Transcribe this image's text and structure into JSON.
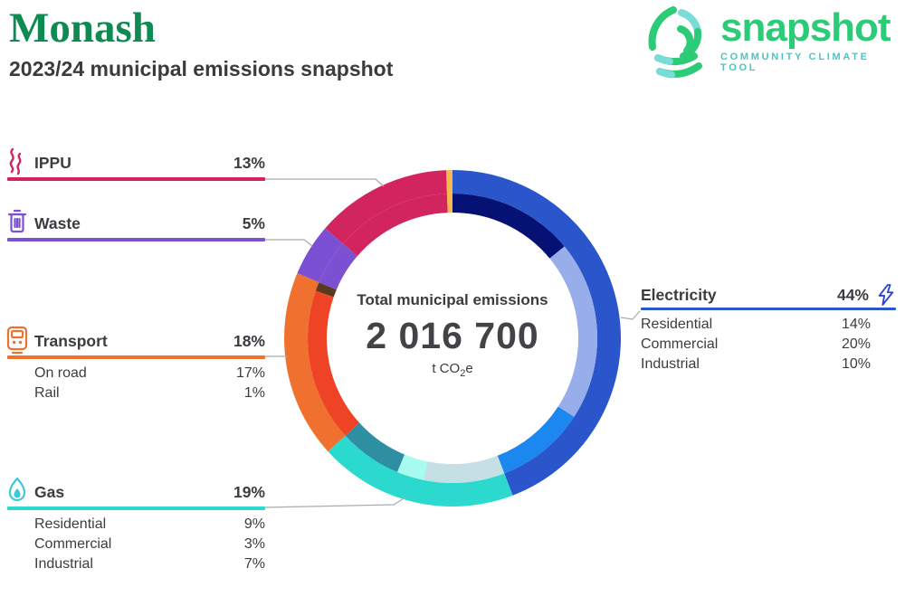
{
  "header": {
    "title": "Monash",
    "subtitle": "2023/24 municipal emissions snapshot",
    "title_color": "#0E8A52"
  },
  "logo": {
    "wordmark": "snapshot",
    "tagline": "COMMUNITY CLIMATE TOOL",
    "green": "#2BCB77",
    "teal": "#45C8C3"
  },
  "center": {
    "label": "Total municipal emissions",
    "value": "2 016 700",
    "unit_prefix": "t CO",
    "unit_sub": "2",
    "unit_suffix": "e"
  },
  "chart_data": {
    "type": "pie",
    "subtype": "two-ring donut",
    "title": "Total municipal emissions",
    "total_label": "2 016 700",
    "unit": "t CO2e",
    "start_angle_deg": 0,
    "direction": "clockwise",
    "rings": [
      "sector (outer)",
      "subsector (inner)"
    ],
    "series": [
      {
        "name": "Electricity",
        "pct": "44%",
        "value": 44,
        "color": "#2B55CB",
        "icon": "lightning-bolt",
        "icon_color": "#2B45D0",
        "subs": [
          {
            "name": "Residential",
            "pct": "14%",
            "value": 14,
            "color": "#051173"
          },
          {
            "name": "Commercial",
            "pct": "20%",
            "value": 20,
            "color": "#97AEEA"
          },
          {
            "name": "Industrial",
            "pct": "10%",
            "value": 10,
            "color": "#1D87F0"
          }
        ]
      },
      {
        "name": "Gas",
        "pct": "19%",
        "value": 19,
        "color": "#2BD9CE",
        "icon": "flame",
        "icon_color": "#3EC9DB",
        "subs": [
          {
            "name": "Residential",
            "pct": "9%",
            "value": 9,
            "color": "#C4E0E4"
          },
          {
            "name": "Commercial",
            "pct": "3%",
            "value": 3,
            "color": "#A8FBEF"
          },
          {
            "name": "Industrial",
            "pct": "7%",
            "value": 7,
            "color": "#2E8FA3"
          }
        ]
      },
      {
        "name": "Transport",
        "pct": "18%",
        "value": 18,
        "color": "#F0712F",
        "icon": "train",
        "icon_color": "#F0712F",
        "subs": [
          {
            "name": "On road",
            "pct": "17%",
            "value": 17,
            "color": "#EE4325"
          },
          {
            "name": "Rail",
            "pct": "1%",
            "value": 1,
            "color": "#5A3A1E"
          }
        ]
      },
      {
        "name": "Waste",
        "pct": "5%",
        "value": 5,
        "color": "#7B50D2",
        "icon": "trash-can",
        "icon_color": "#7B50D2",
        "subs": []
      },
      {
        "name": "IPPU",
        "pct": "13%",
        "value": 13,
        "color": "#D22560",
        "icon": "smoke",
        "icon_color": "#D22560",
        "subs": []
      },
      {
        "name": "unlabelled",
        "pct": "",
        "value": 0.6,
        "color": "#F5B94E",
        "icon": "",
        "icon_color": "",
        "subs": []
      }
    ]
  }
}
